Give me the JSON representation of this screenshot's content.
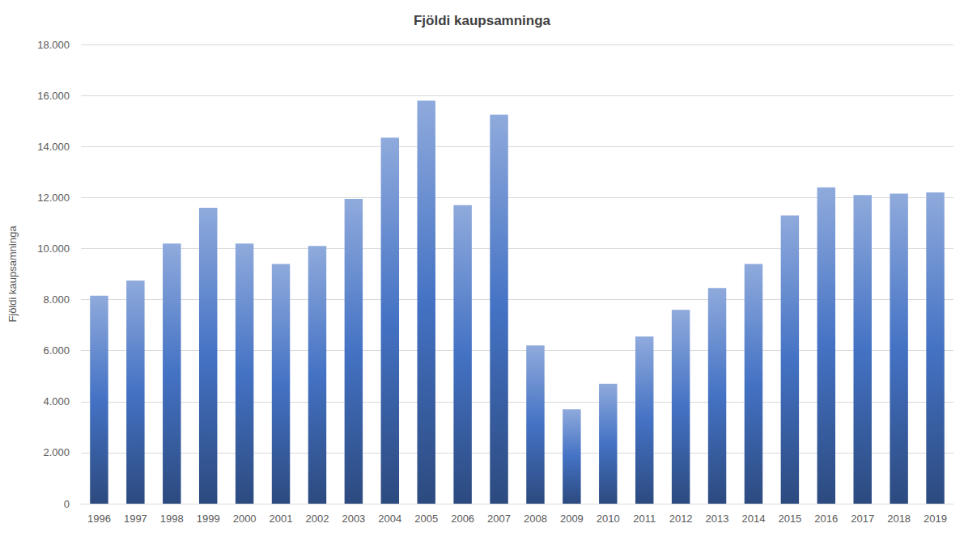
{
  "chart_data": {
    "type": "bar",
    "title": "Fjöldi kaupsamninga",
    "y_label": "Fjöldi kaupsamninga",
    "categories": [
      "1996",
      "1997",
      "1998",
      "1999",
      "2000",
      "2001",
      "2002",
      "2003",
      "2004",
      "2005",
      "2006",
      "2007",
      "2008",
      "2009",
      "2010",
      "2011",
      "2012",
      "2013",
      "2014",
      "2015",
      "2016",
      "2017",
      "2018",
      "2019"
    ],
    "values": [
      8150,
      8750,
      10200,
      11600,
      10200,
      9400,
      10100,
      11950,
      14350,
      15800,
      11700,
      15250,
      6200,
      3700,
      4700,
      6550,
      7600,
      8450,
      9400,
      11300,
      12400,
      12100,
      12150,
      12200
    ],
    "color": "#4472c4",
    "ylim": [
      0,
      18000
    ],
    "yticks": [
      0,
      {
        "value": 2000,
        "label": "2.000"
      },
      {
        "value": 4000,
        "label": "4.000"
      },
      {
        "value": 6000,
        "label": "6.000"
      },
      {
        "value": 8000,
        "label": "8.000"
      },
      {
        "value": 10000,
        "label": "10.000"
      },
      {
        "value": 12000,
        "label": "12.000"
      },
      {
        "value": 14000,
        "label": "14.000"
      },
      {
        "value": 16000,
        "label": "16.000"
      },
      {
        "value": 18000,
        "label": "18.000"
      }
    ],
    "grid": true
  }
}
